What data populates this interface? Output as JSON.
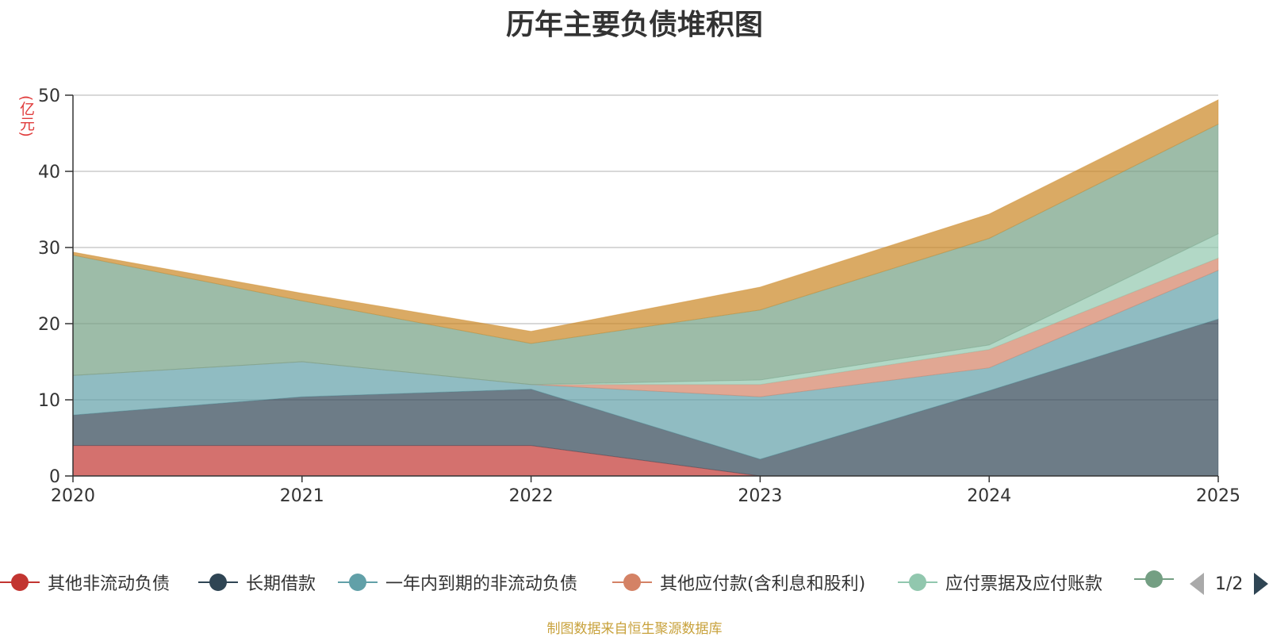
{
  "chart_data": {
    "type": "area",
    "stacked": true,
    "title": "历年主要负债堆积图",
    "ylabel": "(亿元)",
    "xlabel": "",
    "categories": [
      "2020",
      "2021",
      "2022",
      "2023",
      "2024",
      "2025"
    ],
    "ylim": [
      0,
      50
    ],
    "yticks": [
      0,
      10,
      20,
      30,
      40,
      50
    ],
    "grid": true,
    "series": [
      {
        "name": "其他非流动负债",
        "color": "#c23531",
        "values": [
          4.0,
          4.0,
          4.0,
          0.0,
          0.0,
          0.0
        ]
      },
      {
        "name": "长期借款",
        "color": "#2f4554",
        "values": [
          4.0,
          6.4,
          7.4,
          2.2,
          11.2,
          20.6
        ]
      },
      {
        "name": "一年内到期的非流动负债",
        "color": "#61a0a8",
        "values": [
          5.2,
          4.6,
          0.6,
          8.2,
          3.0,
          6.4
        ]
      },
      {
        "name": "其他应付款(含利息和股利)",
        "color": "#d48265",
        "values": [
          0.0,
          0.0,
          0.0,
          1.6,
          2.4,
          1.6
        ]
      },
      {
        "name": "应付票据及应付账款",
        "color": "#91c7ae",
        "values": [
          0.0,
          0.0,
          0.0,
          0.6,
          0.6,
          3.2
        ]
      },
      {
        "name": "",
        "color": "#749f83",
        "values": [
          15.8,
          8.0,
          5.4,
          9.2,
          14.0,
          14.4
        ]
      },
      {
        "name": "",
        "color": "#ca8622",
        "values": [
          0.4,
          1.0,
          1.6,
          3.0,
          3.2,
          3.2
        ]
      }
    ]
  },
  "legend": {
    "items": [
      {
        "label": "其他非流动负债",
        "color": "#c23531"
      },
      {
        "label": "长期借款",
        "color": "#2f4554"
      },
      {
        "label": "一年内到期的非流动负债",
        "color": "#61a0a8"
      },
      {
        "label": "其他应付款(含利息和股利)",
        "color": "#d48265"
      },
      {
        "label": "应付票据及应付账款",
        "color": "#91c7ae"
      },
      {
        "label": "",
        "color": "#749f83"
      }
    ],
    "page": "1/2"
  },
  "source": "制图数据来自恒生聚源数据库"
}
